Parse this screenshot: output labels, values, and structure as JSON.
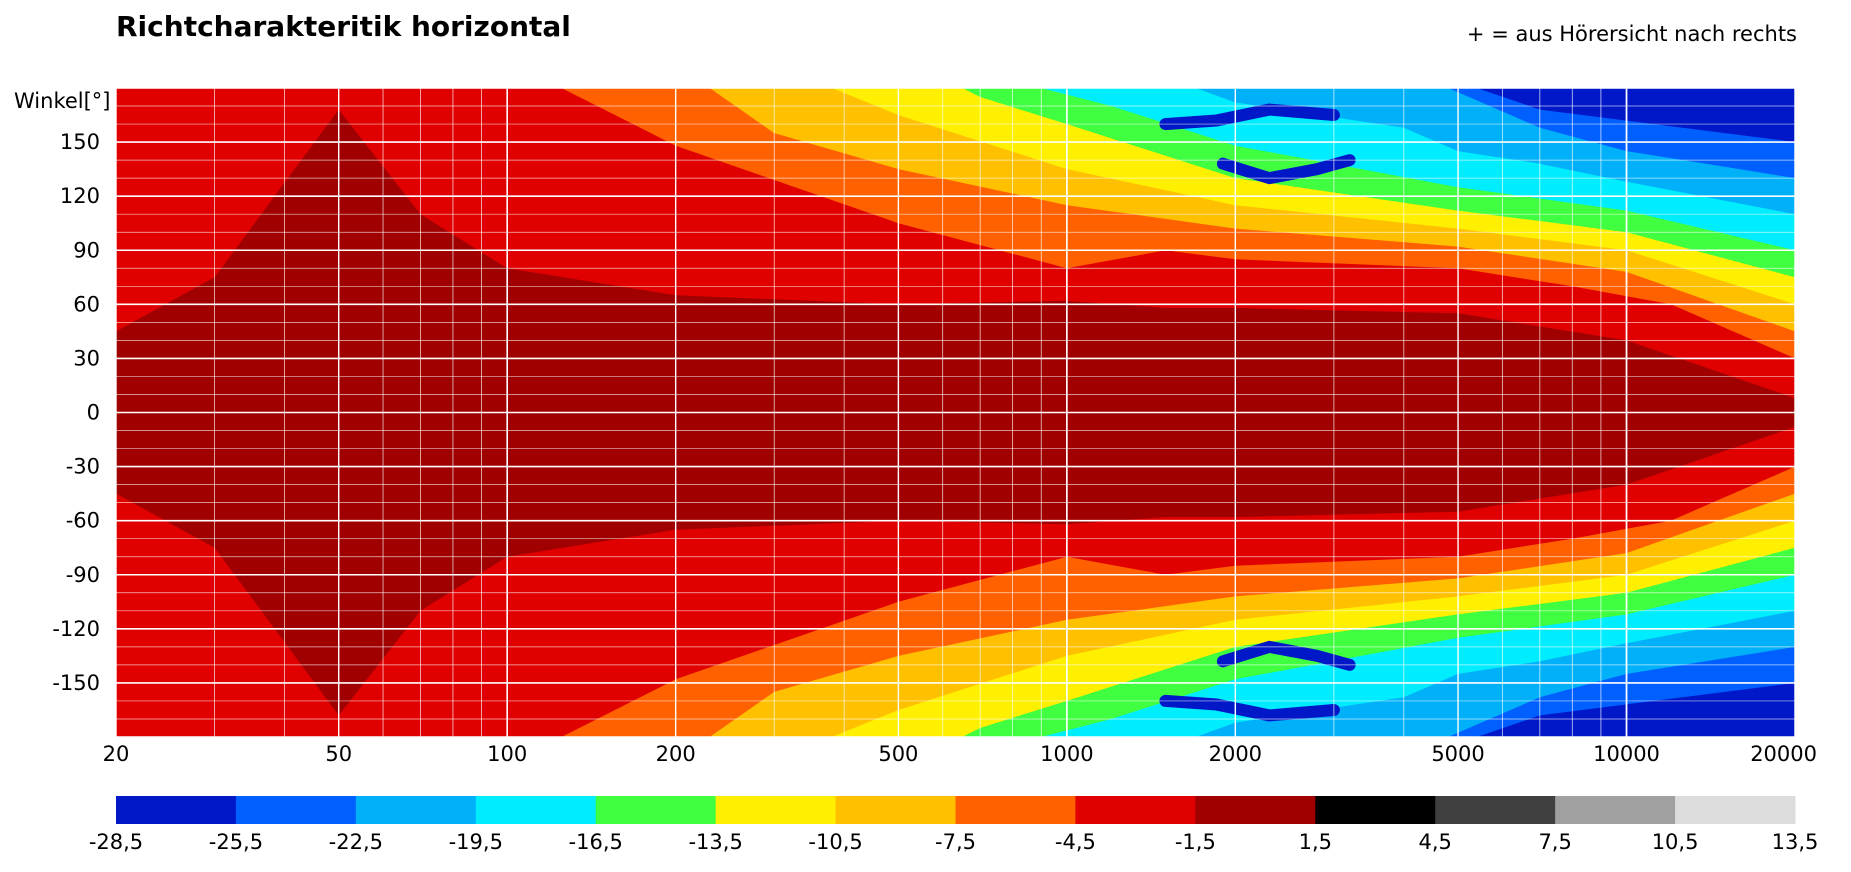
{
  "chart_data": {
    "type": "heatmap",
    "title": "Richtcharakteritik horizontal",
    "note": "+ = aus Hörersicht nach rechts",
    "ylabel": "Winkel[°]",
    "xlabel": "",
    "x_scale": "log",
    "xlim": [
      20,
      20000
    ],
    "ylim": [
      -180,
      180
    ],
    "x_ticks": [
      20,
      50,
      100,
      200,
      500,
      1000,
      2000,
      5000,
      10000,
      20000
    ],
    "y_ticks": [
      150,
      120,
      90,
      60,
      30,
      0,
      -30,
      -60,
      -90,
      -120,
      -150
    ],
    "grid": true,
    "colorbar": {
      "ticks": [
        "-28,5",
        "-25,5",
        "-22,5",
        "-19,5",
        "-16,5",
        "-13,5",
        "-10,5",
        "-7,5",
        "-4,5",
        "-1,5",
        "1,5",
        "4,5",
        "7,5",
        "10,5",
        "13,5"
      ],
      "colors": [
        "#0018c8",
        "#0060ff",
        "#00b0f8",
        "#00ecff",
        "#40ff40",
        "#ffef00",
        "#ffc000",
        "#ff6000",
        "#e00000",
        "#a00000",
        "#000000",
        "#404040",
        "#a0a0a0",
        "#dcdcdc"
      ]
    },
    "contour_levels_db": [
      -1.5,
      -4.5,
      -7.5,
      -10.5,
      -13.5,
      -16.5,
      -19.5,
      -22.5,
      -25.5
    ],
    "contour_boundaries": [
      {
        "level": -1.5,
        "frequency": [
          20,
          30,
          50,
          70,
          100,
          200,
          500,
          1000,
          1500,
          2000,
          5000,
          10000,
          20000
        ],
        "angle": [
          45,
          75,
          168,
          110,
          80,
          65,
          60,
          62,
          58,
          58,
          55,
          40,
          8
        ]
      },
      {
        "level": -4.5,
        "frequency": [
          20,
          100,
          125,
          200,
          500,
          1000,
          1500,
          2000,
          5000,
          8000,
          12000,
          20000
        ],
        "angle": [
          180,
          180,
          180,
          148,
          105,
          80,
          90,
          85,
          80,
          70,
          60,
          30
        ]
      },
      {
        "level": -7.5,
        "frequency": [
          20,
          230,
          300,
          500,
          1000,
          2000,
          5000,
          10000,
          20000
        ],
        "angle": [
          180,
          180,
          155,
          135,
          115,
          102,
          92,
          78,
          45
        ]
      },
      {
        "level": -10.5,
        "frequency": [
          20,
          380,
          500,
          1000,
          2000,
          5000,
          10000,
          20000
        ],
        "angle": [
          180,
          180,
          165,
          135,
          115,
          102,
          90,
          60
        ]
      },
      {
        "level": -13.5,
        "frequency": [
          20,
          650,
          700,
          1000,
          2000,
          5000,
          10000,
          20000
        ],
        "angle": [
          180,
          180,
          175,
          160,
          130,
          112,
          100,
          75
        ]
      },
      {
        "level": -16.5,
        "frequency": [
          20,
          900,
          1200,
          2000,
          5000,
          10000,
          20000
        ],
        "angle": [
          180,
          180,
          170,
          148,
          125,
          112,
          90
        ]
      },
      {
        "level": -19.5,
        "frequency": [
          20,
          1700,
          2000,
          4000,
          5000,
          7000,
          10000,
          20000
        ],
        "angle": [
          180,
          180,
          172,
          158,
          145,
          138,
          128,
          110
        ]
      },
      {
        "level": -22.5,
        "frequency": [
          20,
          4800,
          7000,
          10000,
          20000
        ],
        "angle": [
          180,
          180,
          158,
          145,
          130
        ]
      },
      {
        "level": -25.5,
        "frequency": [
          20,
          5400,
          7000,
          20000
        ],
        "angle": [
          180,
          180,
          168,
          150
        ]
      }
    ],
    "deep_nulls_db_below_minus_25_5": [
      {
        "frequency": [
          1500,
          1850,
          2300,
          3000
        ],
        "angle": [
          160,
          162,
          168,
          165
        ]
      },
      {
        "frequency": [
          1900,
          2300,
          2800,
          3200
        ],
        "angle": [
          138,
          130,
          135,
          140
        ]
      }
    ]
  }
}
